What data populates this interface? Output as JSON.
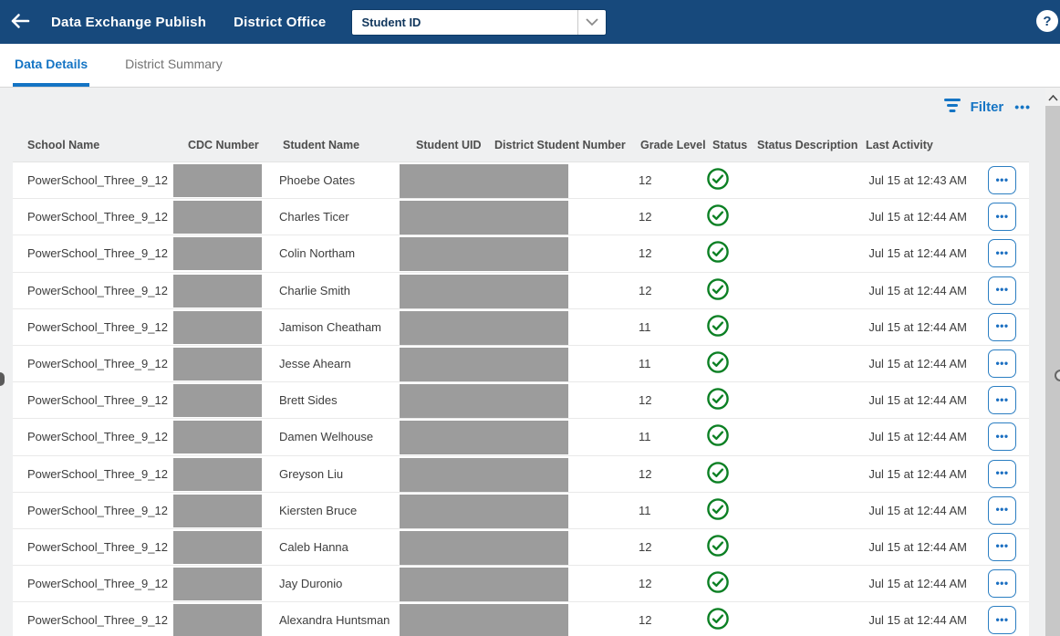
{
  "header": {
    "title": "Data Exchange Publish",
    "subtitle": "District Office",
    "dropdown_value": "Student ID"
  },
  "icons": {
    "back": "arrow-left",
    "help": "question-circle",
    "dropdown": "chevron-down",
    "filter": "funnel-lines",
    "more": "ellipsis",
    "status_ok": "check-circle",
    "scroll_up": "chevron-up",
    "row_actions": "ellipsis"
  },
  "tabs": [
    {
      "label": "Data Details",
      "active": true
    },
    {
      "label": "District Summary",
      "active": false
    }
  ],
  "toolbar": {
    "filter_label": "Filter",
    "more_label": "•••"
  },
  "table": {
    "columns": [
      "School Name",
      "CDC Number",
      "Student Name",
      "Student UID",
      "District Student Number",
      "Grade Level",
      "Status",
      "Status Description",
      "Last Activity"
    ],
    "redacted_columns": [
      "CDC Number",
      "Student UID",
      "District Student Number"
    ],
    "rows": [
      {
        "school_name": "PowerSchool_Three_9_12",
        "student_name": "Phoebe Oates",
        "grade_level": "12",
        "status": "valid",
        "status_description": "",
        "last_activity": "Jul 15 at 12:43 AM"
      },
      {
        "school_name": "PowerSchool_Three_9_12",
        "student_name": "Charles Ticer",
        "grade_level": "12",
        "status": "valid",
        "status_description": "",
        "last_activity": "Jul 15 at 12:44 AM"
      },
      {
        "school_name": "PowerSchool_Three_9_12",
        "student_name": "Colin Northam",
        "grade_level": "12",
        "status": "valid",
        "status_description": "",
        "last_activity": "Jul 15 at 12:44 AM"
      },
      {
        "school_name": "PowerSchool_Three_9_12",
        "student_name": "Charlie Smith",
        "grade_level": "12",
        "status": "valid",
        "status_description": "",
        "last_activity": "Jul 15 at 12:44 AM"
      },
      {
        "school_name": "PowerSchool_Three_9_12",
        "student_name": "Jamison Cheatham",
        "grade_level": "11",
        "status": "valid",
        "status_description": "",
        "last_activity": "Jul 15 at 12:44 AM"
      },
      {
        "school_name": "PowerSchool_Three_9_12",
        "student_name": "Jesse Ahearn",
        "grade_level": "11",
        "status": "valid",
        "status_description": "",
        "last_activity": "Jul 15 at 12:44 AM"
      },
      {
        "school_name": "PowerSchool_Three_9_12",
        "student_name": "Brett Sides",
        "grade_level": "12",
        "status": "valid",
        "status_description": "",
        "last_activity": "Jul 15 at 12:44 AM"
      },
      {
        "school_name": "PowerSchool_Three_9_12",
        "student_name": "Damen Welhouse",
        "grade_level": "11",
        "status": "valid",
        "status_description": "",
        "last_activity": "Jul 15 at 12:44 AM"
      },
      {
        "school_name": "PowerSchool_Three_9_12",
        "student_name": "Greyson Liu",
        "grade_level": "12",
        "status": "valid",
        "status_description": "",
        "last_activity": "Jul 15 at 12:44 AM"
      },
      {
        "school_name": "PowerSchool_Three_9_12",
        "student_name": "Kiersten Bruce",
        "grade_level": "11",
        "status": "valid",
        "status_description": "",
        "last_activity": "Jul 15 at 12:44 AM"
      },
      {
        "school_name": "PowerSchool_Three_9_12",
        "student_name": "Caleb Hanna",
        "grade_level": "12",
        "status": "valid",
        "status_description": "",
        "last_activity": "Jul 15 at 12:44 AM"
      },
      {
        "school_name": "PowerSchool_Three_9_12",
        "student_name": "Jay Duronio",
        "grade_level": "12",
        "status": "valid",
        "status_description": "",
        "last_activity": "Jul 15 at 12:44 AM"
      },
      {
        "school_name": "PowerSchool_Three_9_12",
        "student_name": "Alexandra Huntsman",
        "grade_level": "12",
        "status": "valid",
        "status_description": "",
        "last_activity": "Jul 15 at 12:44 AM"
      }
    ]
  },
  "colors": {
    "header_navy": "#17497c",
    "accent_blue": "#1474c4",
    "status_green": "#0c8024",
    "redaction_gray": "#9c9c9c",
    "page_bg": "#eff0f1"
  }
}
